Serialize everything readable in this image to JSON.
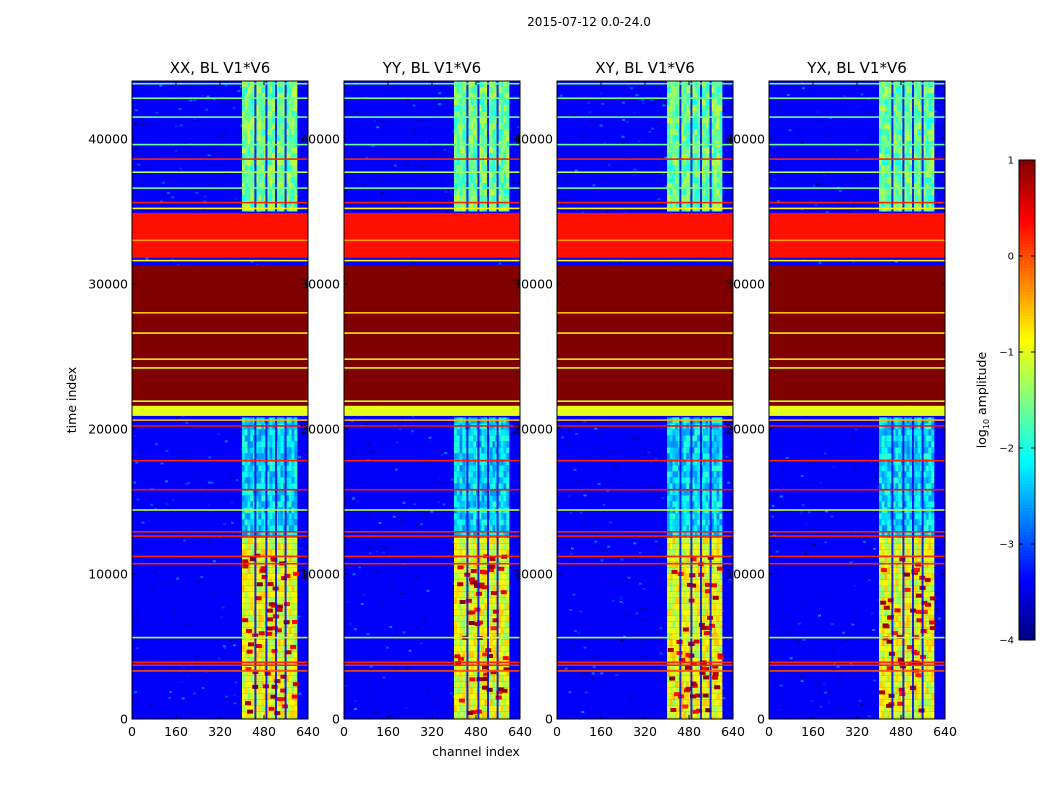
{
  "chart_data": {
    "type": "heatmap",
    "suptitle": "2015-07-12 0.0-24.0",
    "xlabel": "channel index",
    "ylabel": "time index",
    "colorbar_label": "log$_{10}$ amplitude",
    "colorbar_label_parts": {
      "prefix": "log",
      "subscript": "10",
      "suffix": " amplitude"
    },
    "colormap": "jet",
    "xlim": [
      0,
      640
    ],
    "ylim": [
      0,
      44000
    ],
    "x_ticks": [
      0,
      160,
      320,
      480,
      640
    ],
    "y_ticks": [
      0,
      10000,
      20000,
      30000,
      40000
    ],
    "clim": [
      -4,
      1
    ],
    "colorbar_ticks": [
      1,
      0,
      -1,
      -2,
      -3,
      -4
    ],
    "panels": [
      {
        "title": "XX, BL V1*V6",
        "polarization": "XX"
      },
      {
        "title": "YY, BL V1*V6",
        "polarization": "YY"
      },
      {
        "title": "XY, BL V1*V6",
        "polarization": "XY"
      },
      {
        "title": "YX, BL V1*V6",
        "polarization": "YX"
      }
    ],
    "background_log_amplitude": -3.4,
    "signal_channel_range": [
      400,
      600
    ],
    "signal_gap_channels": [
      445,
      485,
      520,
      555
    ],
    "signal_log_amplitude_by_time": [
      {
        "t_range": [
          0,
          12500
        ],
        "value": -1.0
      },
      {
        "t_range": [
          12500,
          20800
        ],
        "value": -2.3
      },
      {
        "t_range": [
          35000,
          44000
        ],
        "value": -1.6
      }
    ],
    "hot_spots_time_range": [
      500,
      11500
    ],
    "flagged_time_bands": [
      {
        "t_range": [
          31800,
          34900
        ],
        "log_amplitude": 0.3
      },
      {
        "t_range": [
          21600,
          31300
        ],
        "log_amplitude": 1.0
      },
      {
        "t_range": [
          20900,
          21600
        ],
        "log_amplitude": -1.0
      }
    ],
    "flag_lines": [
      {
        "t": 3300,
        "log_amplitude": 0.0
      },
      {
        "t": 3700,
        "log_amplitude": 0.2
      },
      {
        "t": 3900,
        "log_amplitude": 0.2
      },
      {
        "t": 5600,
        "log_amplitude": -1.3
      },
      {
        "t": 10700,
        "log_amplitude": 0.2
      },
      {
        "t": 11200,
        "log_amplitude": 0.2
      },
      {
        "t": 12600,
        "log_amplitude": 0.2
      },
      {
        "t": 12900,
        "log_amplitude": 0.2
      },
      {
        "t": 14400,
        "log_amplitude": -1.2
      },
      {
        "t": 15800,
        "log_amplitude": 0.3
      },
      {
        "t": 17800,
        "log_amplitude": 0.2
      },
      {
        "t": 20200,
        "log_amplitude": 0.3
      },
      {
        "t": 20600,
        "log_amplitude": -0.5
      },
      {
        "t": 21900,
        "log_amplitude": -1.0
      },
      {
        "t": 24200,
        "log_amplitude": -1.0
      },
      {
        "t": 24800,
        "log_amplitude": -0.8
      },
      {
        "t": 26600,
        "log_amplitude": -0.8
      },
      {
        "t": 28000,
        "log_amplitude": -0.6
      },
      {
        "t": 31600,
        "log_amplitude": -0.8
      },
      {
        "t": 33000,
        "log_amplitude": -0.4
      },
      {
        "t": 35200,
        "log_amplitude": -0.8
      },
      {
        "t": 35600,
        "log_amplitude": 0.2
      },
      {
        "t": 36600,
        "log_amplitude": -1.6
      },
      {
        "t": 37700,
        "log_amplitude": -1.3
      },
      {
        "t": 38600,
        "log_amplitude": 0.2
      },
      {
        "t": 39600,
        "log_amplitude": -1.6
      },
      {
        "t": 41500,
        "log_amplitude": -1.6
      },
      {
        "t": 42800,
        "log_amplitude": -1.6
      },
      {
        "t": 43800,
        "log_amplitude": -1.6
      }
    ]
  }
}
